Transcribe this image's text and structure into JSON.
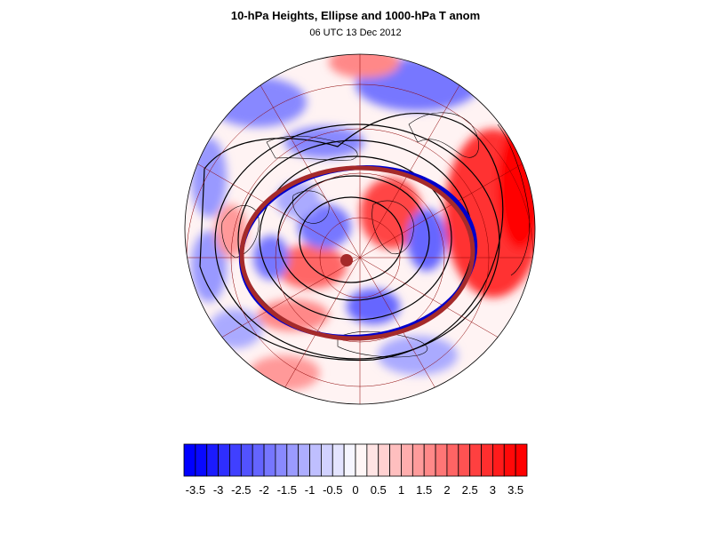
{
  "title": "10-hPa Heights, Ellipse and 1000-hPa T anom",
  "subtitle": "06 UTC 13 Dec 2012",
  "colors": {
    "background": "#ffffff",
    "negative_extreme": "#0000ff",
    "neutral": "#ffffff",
    "positive_extreme": "#ff0000",
    "ellipse": "#a52a2a",
    "ellipse_blue": "#0000cc",
    "height_contours": "#000000",
    "graticule": "#8b0000"
  },
  "colorbar": {
    "levels": [
      -3.5,
      -3.25,
      -3,
      -2.75,
      -2.5,
      -2.25,
      -2,
      -1.75,
      -1.5,
      -1.25,
      -1,
      -0.75,
      -0.5,
      -0.25,
      0,
      0.25,
      0.5,
      0.75,
      1,
      1.25,
      1.5,
      1.75,
      2,
      2.25,
      2.5,
      2.75,
      3,
      3.25,
      3.5
    ],
    "tick_labels": [
      "-3.5",
      "-3",
      "-2.5",
      "-2",
      "-1.5",
      "-1",
      "-0.5",
      "0",
      "0.5",
      "1",
      "1.5",
      "2",
      "2.5",
      "3",
      "3.5"
    ]
  },
  "map": {
    "projection": "north-polar-stereographic",
    "field_range": [
      -3.5,
      3.5
    ]
  }
}
